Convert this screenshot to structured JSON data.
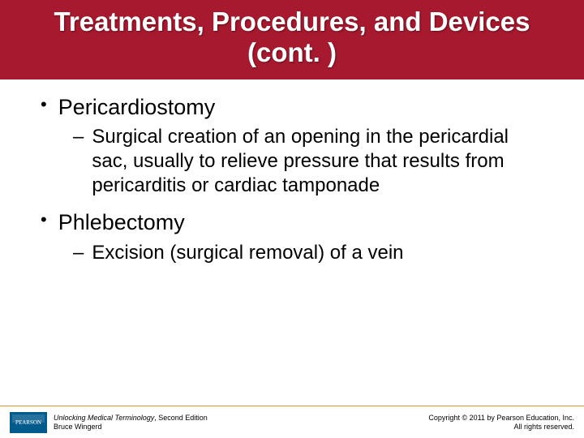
{
  "colors": {
    "title_bg": "#a6192e",
    "title_fg": "#ffffff",
    "footer_rule": "#cc9933",
    "logo_bg": "#005a8b",
    "body_bg": "#ffffff",
    "text": "#000000"
  },
  "title": "Treatments, Procedures, and Devices (cont. )",
  "bullets": [
    {
      "label": "Pericardiostomy",
      "sub": "Surgical creation of an opening in the pericardial sac, usually to relieve pressure that results from pericarditis or cardiac tamponade"
    },
    {
      "label": "Phlebectomy",
      "sub": "Excision (surgical removal) of a vein"
    }
  ],
  "logo_text": "PEARSON",
  "book": {
    "title_italic": "Unlocking Medical Terminology",
    "edition": ", Second Edition",
    "author": "Bruce Wingerd"
  },
  "copyright": {
    "line1": "Copyright © 2011 by Pearson Education, Inc.",
    "line2": "All rights reserved."
  },
  "typography": {
    "title_fontsize": 33,
    "bullet1_fontsize": 27,
    "bullet2_fontsize": 24,
    "footer_fontsize": 9
  }
}
